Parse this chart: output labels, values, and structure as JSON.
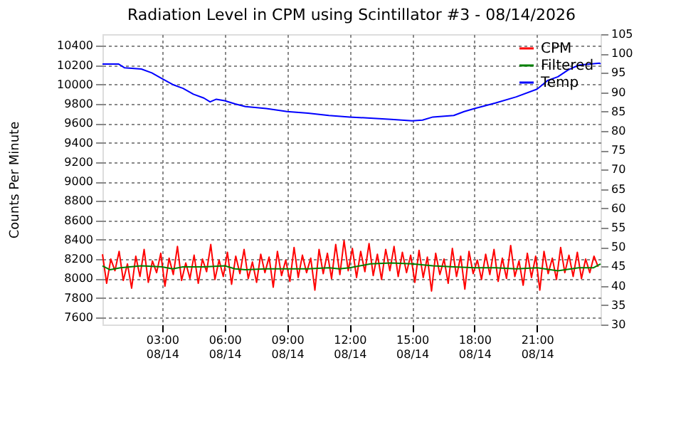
{
  "chart_data": {
    "type": "line",
    "title": "Radiation Level in CPM using Scintillator #3 - 08/14/2026",
    "ylabel": "Counts Per Minute",
    "xlim": [
      "2026-08-14T00:08",
      "2026-08-15T00:03"
    ],
    "xticks": [
      {
        "value": "2026-08-14T03:00",
        "label": "03:00\n08/14"
      },
      {
        "value": "2026-08-14T06:00",
        "label": "06:00\n08/14"
      },
      {
        "value": "2026-08-14T09:00",
        "label": "09:00\n08/14"
      },
      {
        "value": "2026-08-14T12:00",
        "label": "12:00\n08/14"
      },
      {
        "value": "2026-08-14T15:00",
        "label": "15:00\n08/14"
      },
      {
        "value": "2026-08-14T18:00",
        "label": "18:00\n08/14"
      },
      {
        "value": "2026-08-14T21:00",
        "label": "21:00\n08/14"
      }
    ],
    "ylim": [
      7525,
      10520
    ],
    "yticks": [
      7600,
      7800,
      8000,
      8200,
      8400,
      8600,
      8800,
      9000,
      9200,
      9400,
      9600,
      9800,
      10000,
      10200,
      10400
    ],
    "y2lim": [
      30,
      105
    ],
    "y2ticks": [
      30,
      35,
      40,
      45,
      50,
      55,
      60,
      65,
      70,
      75,
      80,
      85,
      90,
      95,
      100,
      105
    ],
    "grid": true,
    "legend": "top right",
    "line_style": "solid",
    "series": [
      {
        "name": "CPM",
        "color": "#ff0000",
        "x": [
          "2026-08-14T00:08",
          "2026-08-14T00:20",
          "2026-08-14T00:32",
          "2026-08-14T00:44",
          "2026-08-14T00:56",
          "2026-08-14T01:08",
          "2026-08-14T01:20",
          "2026-08-14T01:32",
          "2026-08-14T01:44",
          "2026-08-14T01:56",
          "2026-08-14T02:08",
          "2026-08-14T02:20",
          "2026-08-14T02:32",
          "2026-08-14T02:44",
          "2026-08-14T02:56",
          "2026-08-14T03:08",
          "2026-08-14T03:20",
          "2026-08-14T03:32",
          "2026-08-14T03:44",
          "2026-08-14T03:56",
          "2026-08-14T04:08",
          "2026-08-14T04:20",
          "2026-08-14T04:32",
          "2026-08-14T04:44",
          "2026-08-14T04:56",
          "2026-08-14T05:08",
          "2026-08-14T05:20",
          "2026-08-14T05:32",
          "2026-08-14T05:44",
          "2026-08-14T05:56",
          "2026-08-14T06:08",
          "2026-08-14T06:20",
          "2026-08-14T06:32",
          "2026-08-14T06:44",
          "2026-08-14T06:56",
          "2026-08-14T07:08",
          "2026-08-14T07:20",
          "2026-08-14T07:32",
          "2026-08-14T07:44",
          "2026-08-14T07:56",
          "2026-08-14T08:08",
          "2026-08-14T08:20",
          "2026-08-14T08:32",
          "2026-08-14T08:44",
          "2026-08-14T08:56",
          "2026-08-14T09:08",
          "2026-08-14T09:20",
          "2026-08-14T09:32",
          "2026-08-14T09:44",
          "2026-08-14T09:56",
          "2026-08-14T10:08",
          "2026-08-14T10:20",
          "2026-08-14T10:32",
          "2026-08-14T10:44",
          "2026-08-14T10:56",
          "2026-08-14T11:08",
          "2026-08-14T11:20",
          "2026-08-14T11:32",
          "2026-08-14T11:44",
          "2026-08-14T11:56",
          "2026-08-14T12:08",
          "2026-08-14T12:20",
          "2026-08-14T12:32",
          "2026-08-14T12:44",
          "2026-08-14T12:56",
          "2026-08-14T13:08",
          "2026-08-14T13:20",
          "2026-08-14T13:32",
          "2026-08-14T13:44",
          "2026-08-14T13:56",
          "2026-08-14T14:08",
          "2026-08-14T14:20",
          "2026-08-14T14:32",
          "2026-08-14T14:44",
          "2026-08-14T14:56",
          "2026-08-14T15:08",
          "2026-08-14T15:20",
          "2026-08-14T15:32",
          "2026-08-14T15:44",
          "2026-08-14T15:56",
          "2026-08-14T16:08",
          "2026-08-14T16:20",
          "2026-08-14T16:32",
          "2026-08-14T16:44",
          "2026-08-14T16:56",
          "2026-08-14T17:08",
          "2026-08-14T17:20",
          "2026-08-14T17:32",
          "2026-08-14T17:44",
          "2026-08-14T17:56",
          "2026-08-14T18:08",
          "2026-08-14T18:20",
          "2026-08-14T18:32",
          "2026-08-14T18:44",
          "2026-08-14T18:56",
          "2026-08-14T19:08",
          "2026-08-14T19:20",
          "2026-08-14T19:32",
          "2026-08-14T19:44",
          "2026-08-14T19:56",
          "2026-08-14T20:08",
          "2026-08-14T20:20",
          "2026-08-14T20:32",
          "2026-08-14T20:44",
          "2026-08-14T20:56",
          "2026-08-14T21:08",
          "2026-08-14T21:20",
          "2026-08-14T21:32",
          "2026-08-14T21:44",
          "2026-08-14T21:56",
          "2026-08-14T22:08",
          "2026-08-14T22:20",
          "2026-08-14T22:32",
          "2026-08-14T22:44",
          "2026-08-14T22:56",
          "2026-08-14T23:08",
          "2026-08-14T23:20",
          "2026-08-14T23:32",
          "2026-08-14T23:44",
          "2026-08-14T23:56"
        ],
        "values": [
          8250,
          7950,
          8200,
          8080,
          8280,
          7980,
          8150,
          7900,
          8230,
          8020,
          8300,
          7960,
          8180,
          8060,
          8260,
          7920,
          8210,
          8040,
          8330,
          7980,
          8160,
          8000,
          8240,
          7950,
          8200,
          8070,
          8350,
          7990,
          8190,
          8020,
          8270,
          7940,
          8230,
          8050,
          8300,
          8000,
          8170,
          7960,
          8250,
          8060,
          8220,
          7910,
          8280,
          8030,
          8190,
          7970,
          8320,
          8010,
          8240,
          8060,
          8210,
          7880,
          8300,
          8050,
          8260,
          8000,
          8350,
          8040,
          8390,
          8080,
          8310,
          8010,
          8280,
          8070,
          8360,
          8030,
          8250,
          7990,
          8300,
          8080,
          8330,
          8020,
          8270,
          8060,
          8240,
          7960,
          8290,
          8010,
          8220,
          7870,
          8260,
          8040,
          8200,
          7950,
          8310,
          8020,
          8230,
          7890,
          8280,
          8050,
          8190,
          7990,
          8250,
          8040,
          8300,
          7970,
          8210,
          8000,
          8340,
          8020,
          8180,
          7930,
          8260,
          8010,
          8230,
          7880,
          8280,
          8050,
          8210,
          7990,
          8320,
          8060,
          8240,
          8020,
          8270,
          8000,
          8200,
          8060,
          8230,
          8120
        ]
      },
      {
        "name": "Filtered",
        "color": "#008000",
        "x": [
          "2026-08-14T00:08",
          "2026-08-14T00:30",
          "2026-08-14T01:00",
          "2026-08-14T02:00",
          "2026-08-14T03:00",
          "2026-08-14T03:30",
          "2026-08-14T04:00",
          "2026-08-14T05:00",
          "2026-08-14T06:00",
          "2026-08-14T06:30",
          "2026-08-14T07:00",
          "2026-08-14T08:00",
          "2026-08-14T09:00",
          "2026-08-14T10:00",
          "2026-08-14T11:00",
          "2026-08-14T11:30",
          "2026-08-14T12:00",
          "2026-08-14T13:00",
          "2026-08-14T14:00",
          "2026-08-14T15:00",
          "2026-08-14T16:00",
          "2026-08-14T17:00",
          "2026-08-14T18:00",
          "2026-08-14T19:00",
          "2026-08-14T20:00",
          "2026-08-14T21:00",
          "2026-08-14T22:00",
          "2026-08-14T23:00",
          "2026-08-14T23:42",
          "2026-08-15T00:03"
        ],
        "values": [
          8130,
          8090,
          8110,
          8130,
          8120,
          8100,
          8120,
          8120,
          8130,
          8100,
          8090,
          8100,
          8100,
          8100,
          8110,
          8100,
          8110,
          8150,
          8160,
          8150,
          8130,
          8120,
          8110,
          8110,
          8100,
          8110,
          8080,
          8110,
          8110,
          8150
        ]
      },
      {
        "name": "Temp",
        "color": "#0000ff",
        "axis": "y2",
        "x": [
          "2026-08-14T00:08",
          "2026-08-14T00:54",
          "2026-08-14T01:12",
          "2026-08-14T02:00",
          "2026-08-14T02:30",
          "2026-08-14T03:00",
          "2026-08-14T03:30",
          "2026-08-14T04:00",
          "2026-08-14T04:30",
          "2026-08-14T05:00",
          "2026-08-14T05:18",
          "2026-08-14T05:36",
          "2026-08-14T06:00",
          "2026-08-14T06:30",
          "2026-08-14T07:00",
          "2026-08-14T08:00",
          "2026-08-14T09:00",
          "2026-08-14T10:00",
          "2026-08-14T11:00",
          "2026-08-14T12:00",
          "2026-08-14T13:00",
          "2026-08-14T14:00",
          "2026-08-14T15:00",
          "2026-08-14T15:30",
          "2026-08-14T16:00",
          "2026-08-14T17:00",
          "2026-08-14T17:30",
          "2026-08-14T18:00",
          "2026-08-14T19:00",
          "2026-08-14T20:00",
          "2026-08-14T21:00",
          "2026-08-14T21:30",
          "2026-08-14T22:00",
          "2026-08-14T22:30",
          "2026-08-14T23:00",
          "2026-08-15T00:00",
          "2026-08-15T00:03"
        ],
        "values": [
          97.3,
          97.3,
          96.3,
          96.0,
          95.0,
          93.5,
          92.0,
          91.0,
          89.5,
          88.5,
          87.5,
          88.2,
          87.8,
          87.0,
          86.3,
          85.8,
          85.0,
          84.6,
          84.0,
          83.6,
          83.3,
          83.0,
          82.6,
          82.8,
          83.6,
          84.0,
          85.0,
          85.8,
          87.2,
          88.8,
          90.8,
          93.0,
          94.0,
          95.8,
          97.0,
          97.5,
          97.3
        ]
      }
    ]
  }
}
